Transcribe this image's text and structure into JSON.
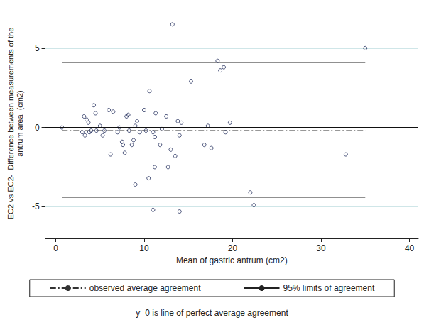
{
  "chart_data": {
    "type": "scatter",
    "x_label": "Mean of gastric antrum (cm2)",
    "y_label": "EC2 vs EC2-  Difference between measurements of the\nantrum area  (cm2)",
    "annotations": [
      "y=0 is line of perfect average agreement"
    ],
    "perfect_agreement": 0,
    "xlim": [
      -1.2,
      41
    ],
    "xticks": [
      0,
      10,
      20,
      30,
      40
    ],
    "ylim": [
      -7,
      7.5
    ],
    "yticks": [
      -5,
      0,
      5
    ],
    "grid": true,
    "legend": "bottom",
    "series": [
      {
        "type": "scatter",
        "marker": "circle-open",
        "color": "#1f2a5a",
        "values": [
          [
            0.7,
            0
          ],
          [
            3,
            -0.3
          ],
          [
            3.2,
            0.7
          ],
          [
            3.3,
            -0.5
          ],
          [
            3.5,
            0.5
          ],
          [
            3.7,
            0.3
          ],
          [
            3.8,
            -0.3
          ],
          [
            4,
            -0.2
          ],
          [
            4.3,
            1.4
          ],
          [
            4.5,
            0.9
          ],
          [
            4.6,
            -0.2
          ],
          [
            5,
            0.1
          ],
          [
            5.3,
            -0.5
          ],
          [
            5.5,
            -0.2
          ],
          [
            6,
            1.1
          ],
          [
            6.2,
            -1.7
          ],
          [
            6.5,
            1
          ],
          [
            7,
            -0.3
          ],
          [
            7.2,
            0
          ],
          [
            7.5,
            -0.9
          ],
          [
            7.6,
            -1.1
          ],
          [
            7.8,
            -1.6
          ],
          [
            8,
            0.7
          ],
          [
            8.2,
            0.8
          ],
          [
            8.3,
            -0.2
          ],
          [
            8.6,
            -1.1
          ],
          [
            8.8,
            -0.8
          ],
          [
            9,
            -3.6
          ],
          [
            9,
            0.1
          ],
          [
            9.2,
            0.4
          ],
          [
            9.5,
            -0.3
          ],
          [
            10,
            1.1
          ],
          [
            10.2,
            -0.2
          ],
          [
            10.5,
            -3.2
          ],
          [
            10.6,
            2.3
          ],
          [
            11,
            -0.3
          ],
          [
            11,
            -5.2
          ],
          [
            11.2,
            -0.6
          ],
          [
            11.3,
            0.9
          ],
          [
            11.2,
            -2.5
          ],
          [
            11.8,
            -1.1
          ],
          [
            12,
            -0.1
          ],
          [
            12.5,
            0.7
          ],
          [
            12.7,
            -2.5
          ],
          [
            13,
            -1.4
          ],
          [
            13.2,
            6.5
          ],
          [
            13.5,
            -1.8
          ],
          [
            13.8,
            0.4
          ],
          [
            14,
            -5.3
          ],
          [
            14,
            -0.5
          ],
          [
            14.2,
            0.3
          ],
          [
            15.3,
            2.9
          ],
          [
            16.8,
            -1.1
          ],
          [
            17.2,
            0.1
          ],
          [
            17.6,
            -1.3
          ],
          [
            18.3,
            4.2
          ],
          [
            18.6,
            3.6
          ],
          [
            19,
            3.8
          ],
          [
            19.2,
            -0.3
          ],
          [
            19.7,
            0.3
          ],
          [
            22,
            -4.1
          ],
          [
            22.4,
            -4.9
          ],
          [
            32.8,
            -1.7
          ],
          [
            35,
            5
          ]
        ]
      },
      {
        "name": "observed average agreement",
        "type": "line",
        "line_style": "dashdot",
        "color": "#333333",
        "x": [
          0.7,
          35
        ],
        "values": [
          -0.2,
          -0.2
        ]
      },
      {
        "name": "95% limits of agreement",
        "type": "line",
        "line_style": "solid",
        "color": "#222222",
        "x": [
          0.7,
          35
        ],
        "values": [
          4.1,
          4.1
        ]
      },
      {
        "type": "line",
        "line_style": "solid",
        "color": "#222222",
        "x": [
          0.7,
          35
        ],
        "values": [
          -4.4,
          -4.4
        ]
      }
    ]
  }
}
